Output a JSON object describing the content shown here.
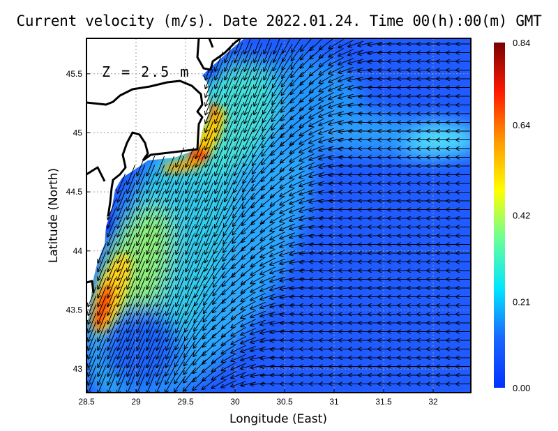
{
  "title": "Current velocity (m/s). Date 2022.01.24. Time 00(h):00(m) GMT",
  "chart_data": {
    "type": "heatmap",
    "subtype": "vector-field-map",
    "title": "Current velocity (m/s). Date 2022.01.24. Time 00(h):00(m) GMT",
    "annotation": "Z = 2.5 m",
    "xlabel": "Longitude (East)",
    "ylabel": "Latitude (North)",
    "xlim": [
      28.5,
      32.38
    ],
    "ylim": [
      42.8,
      45.8
    ],
    "xticks": [
      "28.5",
      "29",
      "29.5",
      "30",
      "30.5",
      "31",
      "31.5",
      "32"
    ],
    "xtick_values": [
      28.5,
      29,
      29.5,
      30,
      30.5,
      31,
      31.5,
      32
    ],
    "yticks": [
      "43",
      "43.5",
      "44",
      "44.5",
      "45",
      "45.5"
    ],
    "ytick_values": [
      43,
      43.5,
      44,
      44.5,
      45,
      45.5
    ],
    "grid": true,
    "colorbar": {
      "min": 0.0,
      "max": 0.84,
      "labels": [
        "0.84",
        "0.64",
        "0.42",
        "0.21",
        "0.00"
      ],
      "label_values": [
        0.84,
        0.64,
        0.42,
        0.21,
        0.0
      ],
      "colors": [
        "#0033ff",
        "#1a66ff",
        "#00e5ff",
        "#66ff99",
        "#ffff00",
        "#ff9900",
        "#ff1a00",
        "#7a0000"
      ]
    },
    "speed_maxima": [
      {
        "lon": 29.65,
        "lat": 44.8,
        "speed": 0.84
      },
      {
        "lon": 28.65,
        "lat": 43.5,
        "speed": 0.8
      }
    ],
    "flow": {
      "coastal_direction": "south-southwest",
      "offshore_direction": "west"
    }
  }
}
